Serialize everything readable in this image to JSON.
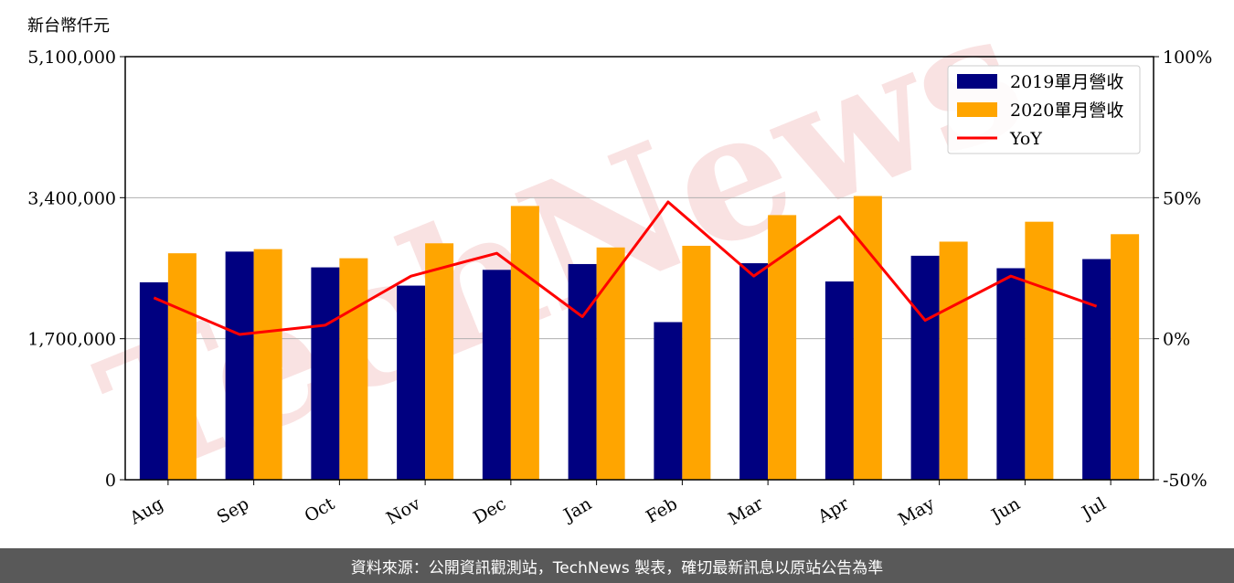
{
  "unit_label": "新台幣仟元",
  "footer_text": "資料來源：公開資訊觀測站，TechNews 製表，確切最新訊息以原站公告為準",
  "watermark": "TechNews",
  "colors": {
    "bar_2019": "#000080",
    "bar_2020": "#ffa500",
    "yoy_line": "#ff0000",
    "watermark": "#f6d5d5",
    "footer_bg": "#595959"
  },
  "chart_data": {
    "type": "bar",
    "categories": [
      "Aug",
      "Sep",
      "Oct",
      "Nov",
      "Dec",
      "Jan",
      "Feb",
      "Mar",
      "Apr",
      "May",
      "Jun",
      "Jul"
    ],
    "series": [
      {
        "name": "2019單月營收",
        "type": "bar",
        "axis": "left",
        "values": [
          2380000,
          2750000,
          2560000,
          2340000,
          2530000,
          2600000,
          1900000,
          2610000,
          2390000,
          2700000,
          2550000,
          2660000
        ]
      },
      {
        "name": "2020單月營收",
        "type": "bar",
        "axis": "left",
        "values": [
          2730000,
          2780000,
          2670000,
          2850000,
          3300000,
          2800000,
          2820000,
          3190000,
          3420000,
          2870000,
          3110000,
          2960000
        ]
      },
      {
        "name": "YoY",
        "type": "line",
        "axis": "right",
        "values": [
          14.5,
          1.5,
          4.8,
          22.2,
          30.3,
          7.8,
          48.5,
          22.2,
          43.3,
          6.5,
          22.2,
          11.5
        ]
      }
    ],
    "left_axis": {
      "ylim": [
        0,
        5100000
      ],
      "ticks": [
        "0",
        "1,700,000",
        "3,400,000",
        "5,100,000"
      ],
      "tick_values": [
        0,
        1700000,
        3400000,
        5100000
      ]
    },
    "right_axis": {
      "ylim": [
        -50,
        100
      ],
      "ticks": [
        "-50%",
        "0%",
        "50%",
        "100%"
      ],
      "tick_values": [
        -50,
        0,
        50,
        100
      ]
    },
    "grid": "horizontal",
    "legend_position": "top-right"
  }
}
